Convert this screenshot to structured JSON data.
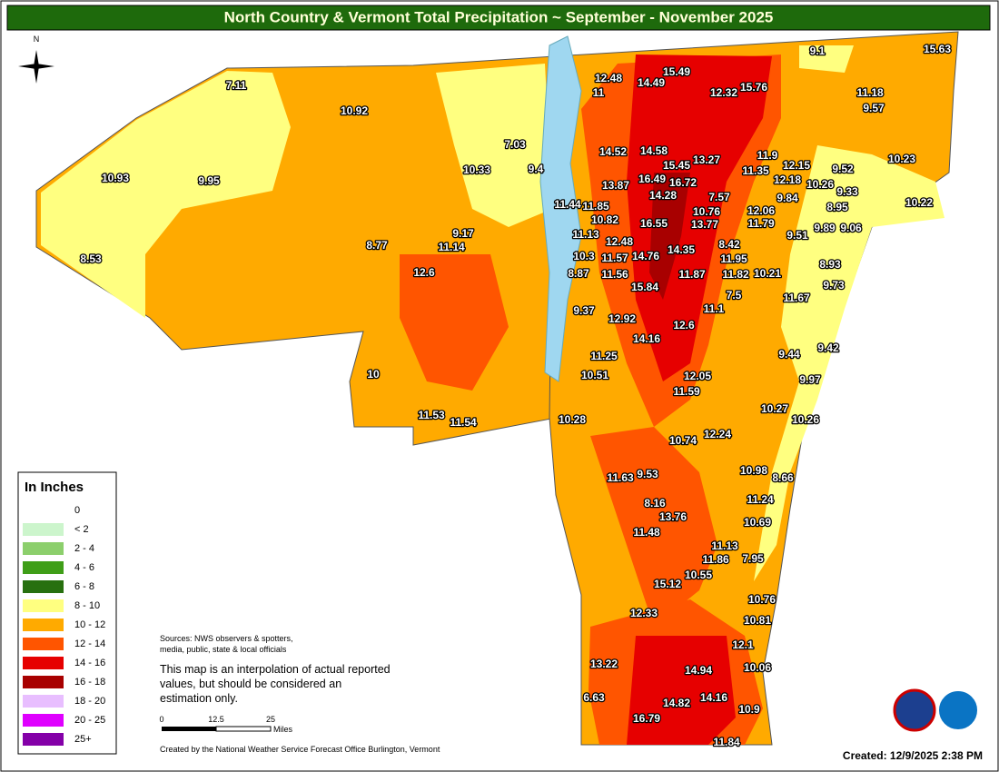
{
  "title": "North Country & Vermont Total Precipitation ~ September - November 2025",
  "compass": "N",
  "legend": {
    "title": "In Inches",
    "items": [
      {
        "label": "0",
        "color": "#ffffff"
      },
      {
        "label": "< 2",
        "color": "#ccf5cc"
      },
      {
        "label": "2 - 4",
        "color": "#8ccf6c"
      },
      {
        "label": "4 - 6",
        "color": "#3f9e18"
      },
      {
        "label": "6 - 8",
        "color": "#27700f"
      },
      {
        "label": "8 - 10",
        "color": "#ffff80"
      },
      {
        "label": "10 - 12",
        "color": "#ffaa00"
      },
      {
        "label": "12 - 14",
        "color": "#ff5500"
      },
      {
        "label": "14 - 16",
        "color": "#e60000"
      },
      {
        "label": "16 - 18",
        "color": "#a80000"
      },
      {
        "label": "18 - 20",
        "color": "#e8beff"
      },
      {
        "label": "20 - 25",
        "color": "#df00ff"
      },
      {
        "label": "25+",
        "color": "#8400a8"
      }
    ]
  },
  "sources": [
    "Sources: NWS observers & spotters,",
    "media, public, state & local officials"
  ],
  "disclaimer": [
    "This map is an interpolation of actual reported",
    "values, but should be considered an",
    "estimation only."
  ],
  "scale": {
    "ticks": [
      "0",
      "12.5",
      "25"
    ],
    "unit": "Miles"
  },
  "credit": "Created by the National Weather Service Forecast Office Burlington, Vermont",
  "created": "Created:  12/9/2025 2:38 PM",
  "station_values": [
    "7.11",
    "10.92",
    "10.93",
    "9.95",
    "8.53",
    "8.77",
    "9.17",
    "11.14",
    "12.6",
    "10.33",
    "7.03",
    "9.4",
    "12.48",
    "11",
    "14.49",
    "15.49",
    "12.32",
    "15.76",
    "9.1",
    "15.63",
    "11.18",
    "9.57",
    "14.52",
    "14.58",
    "15.45",
    "13.27",
    "11.9",
    "12.15",
    "11.35",
    "9.52",
    "10.23",
    "12.18",
    "10.26",
    "13.87",
    "16.49",
    "16.72",
    "9.84",
    "9.33",
    "11.44",
    "11.85",
    "7.57",
    "14.28",
    "10.76",
    "12.06",
    "8.95",
    "10.22",
    "10.82",
    "16.55",
    "13.77",
    "11.79",
    "11.13",
    "12.48",
    "9.51",
    "9.89",
    "9.06",
    "8.42",
    "14.35",
    "10.3",
    "11.57",
    "14.76",
    "11.95",
    "8.93",
    "8.87",
    "11.56",
    "11.87",
    "11.82",
    "10.21",
    "15.84",
    "9.73",
    "7.5",
    "11.67",
    "11.1",
    "9.37",
    "12.92",
    "12.6",
    "14.16",
    "9.44",
    "9.42",
    "11.25",
    "10",
    "10.51",
    "12.05",
    "9.97",
    "11.59",
    "11.53",
    "11.54",
    "10.28",
    "10.27",
    "10.26",
    "10.74",
    "12.24",
    "11.63",
    "9.53",
    "10.98",
    "8.66",
    "8.16",
    "11.24",
    "13.76",
    "10.69",
    "11.48",
    "11.13",
    "7.95",
    "11.86",
    "10.55",
    "15.12",
    "10.76",
    "12.33",
    "10.81",
    "12.1",
    "13.22",
    "10.06",
    "14.94",
    "6.63",
    "14.82",
    "14.16",
    "10.9",
    "16.79",
    "11.84"
  ]
}
